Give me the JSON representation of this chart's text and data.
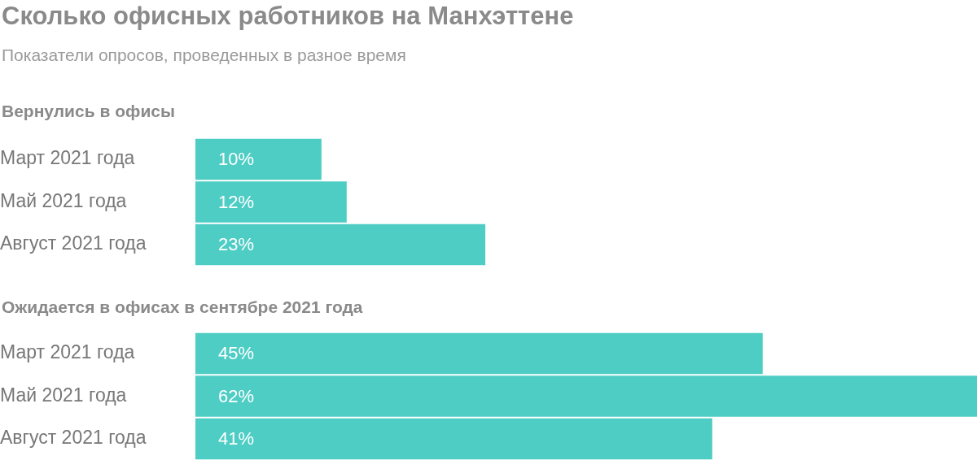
{
  "chart_data": [
    {
      "type": "bar",
      "orientation": "horizontal",
      "title": "Сколько офисных работников на Манхэттене",
      "subtitle": "Показатели опросов, проведенных в разное время",
      "annotations": [
        "Вернулись в офисы"
      ],
      "categories": [
        "Март 2021 года",
        "Май 2021 года",
        "Август 2021 года"
      ],
      "values": [
        10,
        12,
        23
      ],
      "value_labels": [
        "10%",
        "12%",
        "23%"
      ],
      "color": "#4ecdc4"
    },
    {
      "type": "bar",
      "orientation": "horizontal",
      "title": "Ожидается в офисах в сентябре 2021 года",
      "categories": [
        "Март 2021 года",
        "Май 2021 года",
        "Август 2021 года"
      ],
      "values": [
        45,
        62,
        41
      ],
      "value_labels": [
        "45%",
        "62%",
        "41%"
      ],
      "color": "#4ecdc4"
    }
  ]
}
